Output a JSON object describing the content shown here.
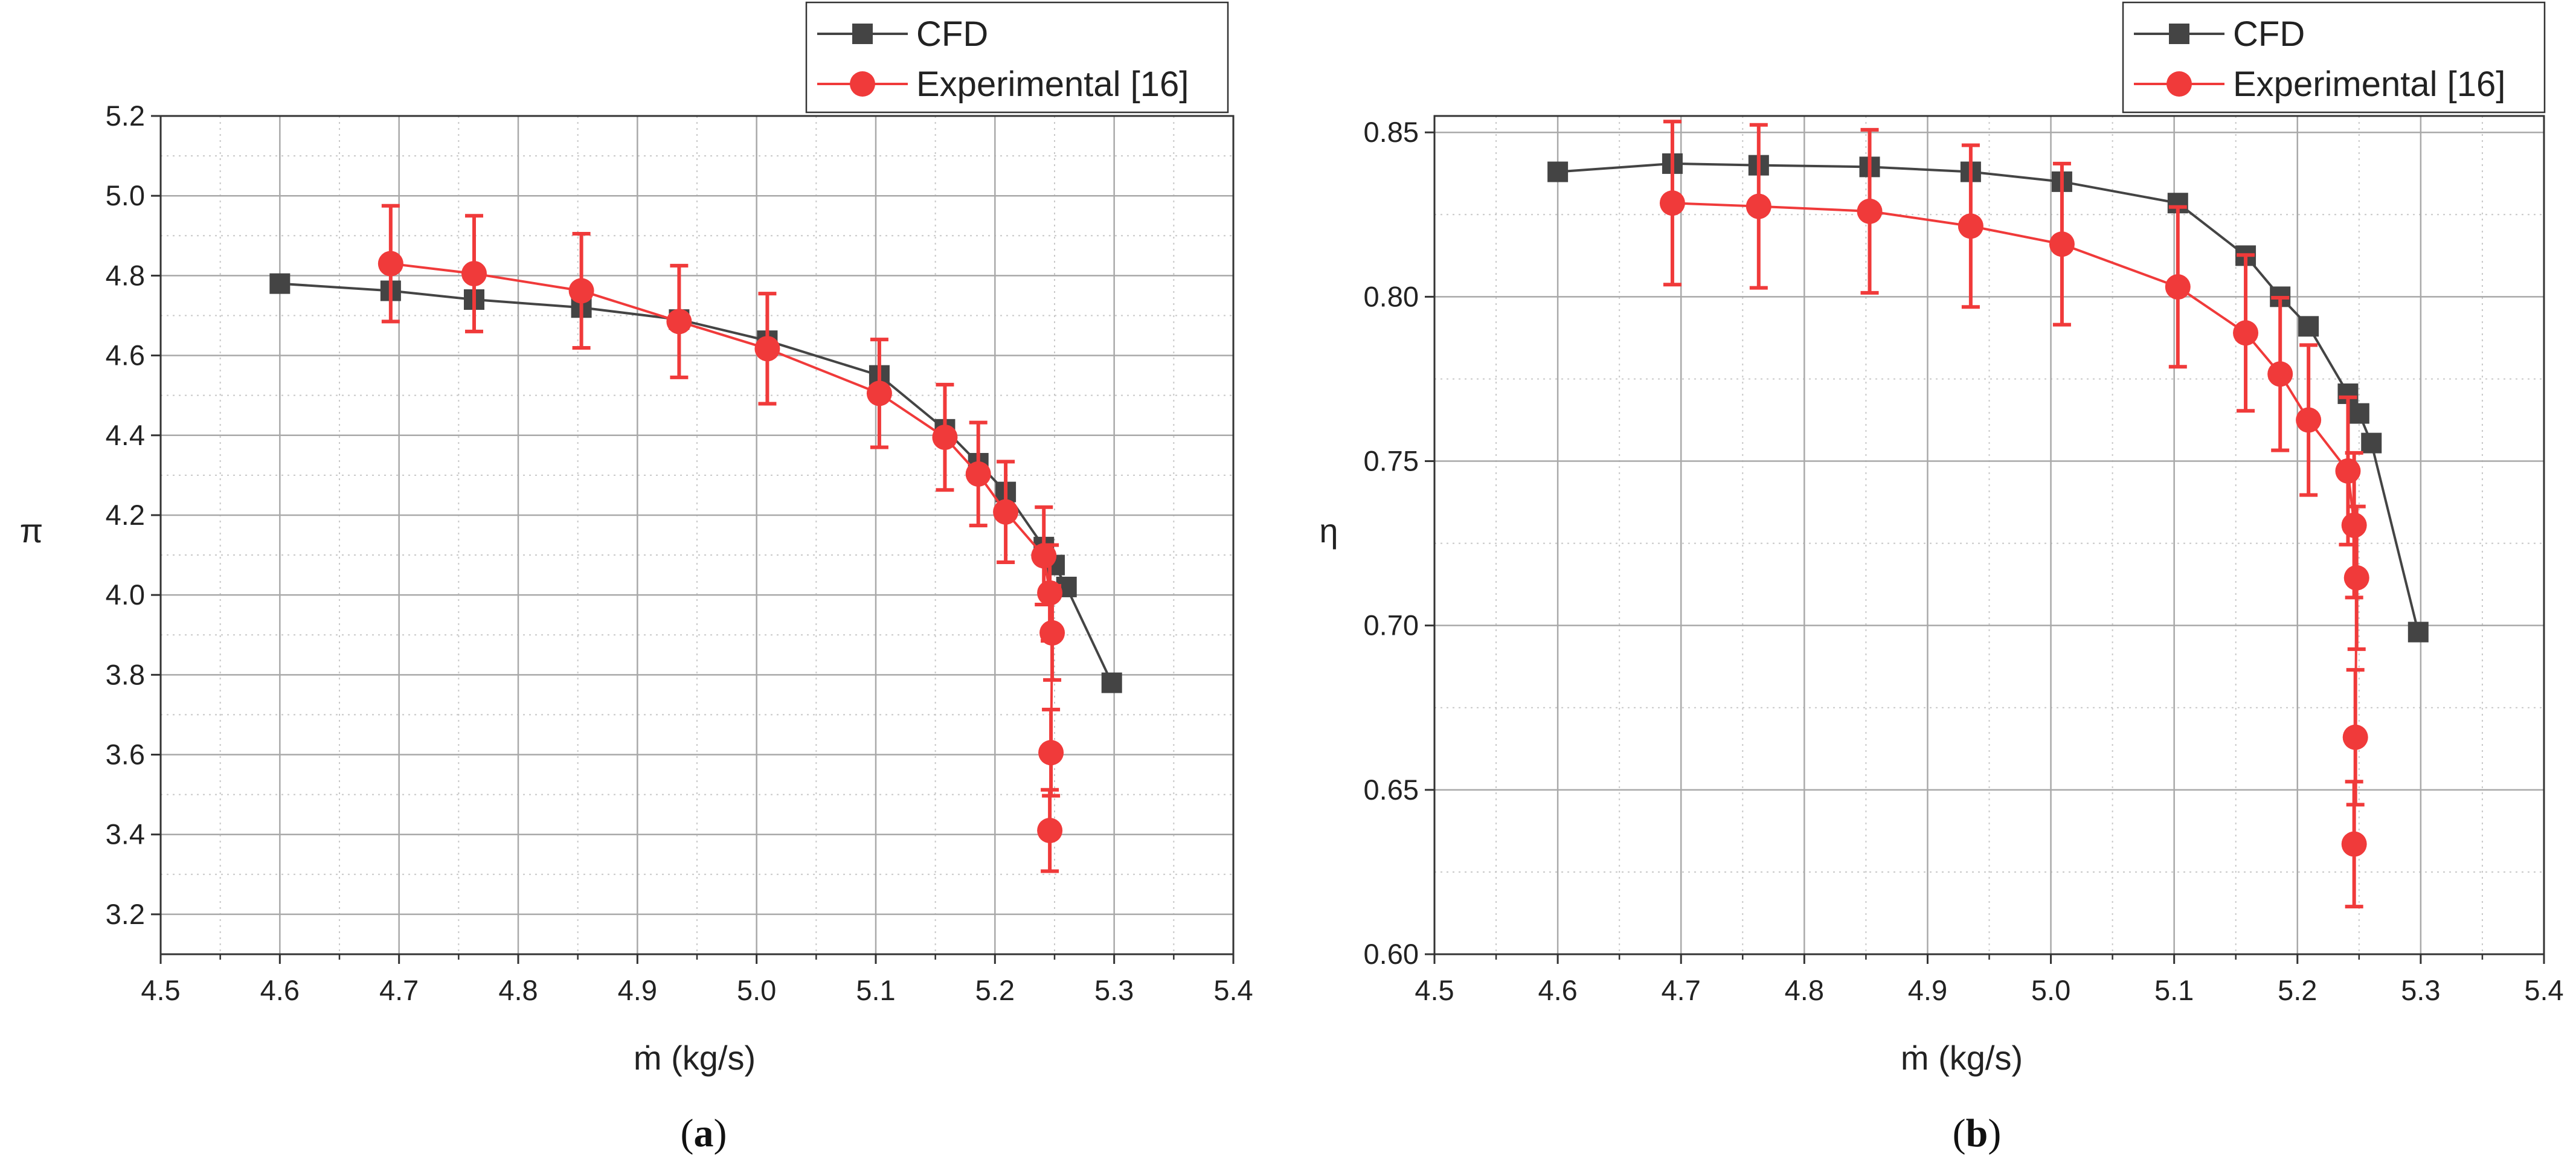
{
  "chart_data": [
    {
      "type": "line",
      "panel_caption": "a",
      "xlabel": "ṁ (kg/s)",
      "ylabel": "π",
      "xlim": [
        4.5,
        5.4
      ],
      "ylim": [
        3.1,
        5.2
      ],
      "x_ticks": [
        4.5,
        4.6,
        4.7,
        4.8,
        4.9,
        5.0,
        5.1,
        5.2,
        5.3,
        5.4
      ],
      "x_tick_labels": [
        "4.5",
        "4.6",
        "4.7",
        "4.8",
        "4.9",
        "5.0",
        "5.1",
        "5.2",
        "5.3",
        "5.4"
      ],
      "y_ticks": [
        3.2,
        3.4,
        3.6,
        3.8,
        4.0,
        4.2,
        4.4,
        4.6,
        4.8,
        5.0,
        5.2
      ],
      "y_tick_labels": [
        "3.2",
        "3.4",
        "3.6",
        "3.8",
        "4.0",
        "4.2",
        "4.4",
        "4.6",
        "4.8",
        "5.0",
        "5.2"
      ],
      "grid": true,
      "legend_position": "top-right, above plot",
      "series": [
        {
          "name": "CFD",
          "color": "#444444",
          "marker": "square",
          "x": [
            4.6,
            4.693,
            4.763,
            4.853,
            4.935,
            5.009,
            5.103,
            5.158,
            5.186,
            5.209,
            5.241,
            5.25,
            5.26,
            5.298
          ],
          "y": [
            4.78,
            4.762,
            4.74,
            4.72,
            4.69,
            4.637,
            4.55,
            4.415,
            4.33,
            4.258,
            4.12,
            4.075,
            4.02,
            3.78
          ]
        },
        {
          "name": "Experimental [16]",
          "color": "#f03a3a",
          "marker": "circle",
          "x": [
            4.693,
            4.763,
            4.853,
            4.935,
            5.009,
            5.103,
            5.158,
            5.186,
            5.209,
            5.241,
            5.246,
            5.248,
            5.247,
            5.246
          ],
          "y": [
            4.83,
            4.805,
            4.762,
            4.685,
            4.617,
            4.505,
            4.395,
            4.303,
            4.208,
            4.098,
            4.005,
            3.905,
            3.605,
            3.41
          ],
          "error": [
            0.145,
            0.145,
            0.143,
            0.14,
            0.138,
            0.135,
            0.132,
            0.129,
            0.126,
            0.122,
            0.12,
            0.118,
            0.108,
            0.102
          ]
        }
      ]
    },
    {
      "type": "line",
      "panel_caption": "b",
      "xlabel": "ṁ (kg/s)",
      "ylabel": "η",
      "xlim": [
        4.5,
        5.4
      ],
      "ylim": [
        0.6,
        0.855
      ],
      "x_ticks": [
        4.5,
        4.6,
        4.7,
        4.8,
        4.9,
        5.0,
        5.1,
        5.2,
        5.3,
        5.4
      ],
      "x_tick_labels": [
        "4.5",
        "4.6",
        "4.7",
        "4.8",
        "4.9",
        "5.0",
        "5.1",
        "5.2",
        "5.3",
        "5.4"
      ],
      "y_ticks": [
        0.6,
        0.65,
        0.7,
        0.75,
        0.8,
        0.85
      ],
      "y_tick_labels": [
        "0.60",
        "0.65",
        "0.70",
        "0.75",
        "0.80",
        "0.85"
      ],
      "grid": true,
      "legend_position": "top-right, above plot",
      "series": [
        {
          "name": "CFD",
          "color": "#444444",
          "marker": "square",
          "x": [
            4.6,
            4.693,
            4.763,
            4.853,
            4.935,
            5.009,
            5.103,
            5.158,
            5.186,
            5.209,
            5.241,
            5.25,
            5.26,
            5.298
          ],
          "y": [
            0.838,
            0.8405,
            0.84,
            0.8395,
            0.838,
            0.835,
            0.8285,
            0.8125,
            0.8,
            0.791,
            0.7705,
            0.7645,
            0.7555,
            0.698
          ]
        },
        {
          "name": "Experimental [16]",
          "color": "#f03a3a",
          "marker": "circle",
          "x": [
            4.693,
            4.763,
            4.853,
            4.935,
            5.009,
            5.103,
            5.158,
            5.186,
            5.209,
            5.241,
            5.246,
            5.248,
            5.247,
            5.246
          ],
          "y": [
            0.8285,
            0.8275,
            0.826,
            0.8215,
            0.816,
            0.803,
            0.789,
            0.7765,
            0.7625,
            0.747,
            0.7305,
            0.7145,
            0.666,
            0.6335
          ],
          "error": [
            0.0248,
            0.0248,
            0.0248,
            0.0246,
            0.0245,
            0.0243,
            0.0237,
            0.0232,
            0.0228,
            0.0224,
            0.022,
            0.0217,
            0.0205,
            0.019
          ]
        }
      ]
    }
  ]
}
